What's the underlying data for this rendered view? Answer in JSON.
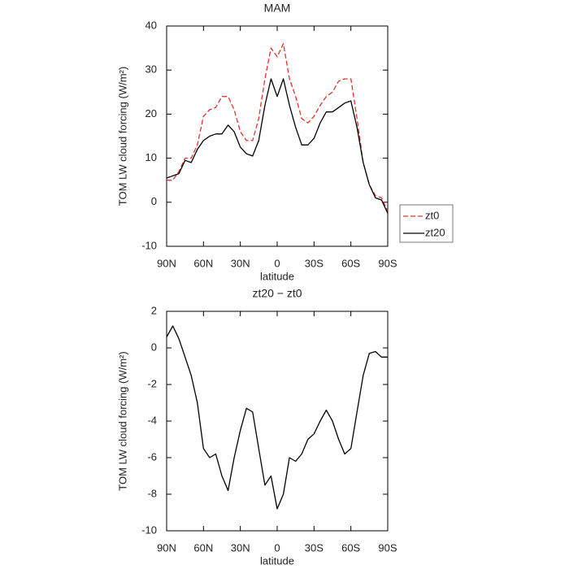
{
  "chart_data": [
    {
      "type": "line",
      "title": "MAM",
      "x_label": "latitude",
      "y_label": "TOM LW cloud forcing (W/m²)",
      "x": [
        90,
        85,
        80,
        75,
        70,
        65,
        60,
        55,
        50,
        45,
        40,
        35,
        30,
        25,
        20,
        15,
        10,
        5,
        0,
        -5,
        -10,
        -15,
        -20,
        -25,
        -30,
        -35,
        -40,
        -45,
        -50,
        -55,
        -60,
        -65,
        -70,
        -75,
        -80,
        -85,
        -90
      ],
      "series": [
        {
          "name": "zt0",
          "color": "#e8302a",
          "line_style": "dashed",
          "values": [
            5,
            5,
            7,
            10,
            10,
            13,
            19.5,
            21,
            21.5,
            24,
            24,
            21,
            16,
            14,
            14,
            19,
            28,
            35,
            33,
            36,
            28,
            24,
            19,
            18,
            19.5,
            22,
            24,
            25,
            27.5,
            28,
            28,
            19,
            9,
            4,
            1.5,
            1,
            -2
          ]
        },
        {
          "name": "zt20",
          "color": "#000000",
          "line_style": "solid",
          "values": [
            5.5,
            6,
            6.5,
            9.5,
            9,
            12,
            14,
            15,
            15.5,
            15.5,
            17.5,
            16,
            12.5,
            11,
            10.5,
            14,
            22,
            28,
            24,
            28,
            22,
            17,
            13,
            13,
            14.5,
            18,
            20.5,
            20.5,
            21.5,
            22.5,
            23,
            17,
            9,
            4,
            1,
            0.5,
            -2.5
          ]
        }
      ],
      "xlim": [
        90,
        -90
      ],
      "xticks": [
        {
          "value": 90,
          "label": "90N"
        },
        {
          "value": 60,
          "label": "60N"
        },
        {
          "value": 30,
          "label": "30N"
        },
        {
          "value": 0,
          "label": "0"
        },
        {
          "value": -30,
          "label": "30S"
        },
        {
          "value": -60,
          "label": "60S"
        },
        {
          "value": -90,
          "label": "90S"
        }
      ],
      "ylim": [
        -10,
        40
      ],
      "yticks": [
        -10,
        0,
        10,
        20,
        30,
        40
      ],
      "legend": "right"
    },
    {
      "type": "line",
      "title": "zt20 − zt0",
      "x_label": "latitude",
      "y_label": "TOM LW cloud forcing (W/m²)",
      "x": [
        90,
        85,
        80,
        75,
        70,
        65,
        60,
        55,
        50,
        45,
        40,
        35,
        30,
        25,
        20,
        15,
        10,
        5,
        0,
        -5,
        -10,
        -15,
        -20,
        -25,
        -30,
        -35,
        -40,
        -45,
        -50,
        -55,
        -60,
        -65,
        -70,
        -75,
        -80,
        -85,
        -90
      ],
      "series": [
        {
          "color": "#000000",
          "line_style": "solid",
          "values": [
            0.6,
            1.2,
            0.5,
            -0.5,
            -1.5,
            -3,
            -5.5,
            -6,
            -5.8,
            -7,
            -7.8,
            -6,
            -4.5,
            -3.3,
            -3.5,
            -5.5,
            -7.5,
            -7,
            -8.8,
            -8,
            -6,
            -6.2,
            -5.8,
            -5,
            -4.7,
            -4,
            -3.4,
            -4,
            -5,
            -5.8,
            -5.5,
            -3.5,
            -1.5,
            -0.3,
            -0.2,
            -0.5,
            -0.5
          ]
        }
      ],
      "xlim": [
        90,
        -90
      ],
      "xticks": [
        {
          "value": 90,
          "label": "90N"
        },
        {
          "value": 60,
          "label": "60N"
        },
        {
          "value": 30,
          "label": "30N"
        },
        {
          "value": 0,
          "label": "0"
        },
        {
          "value": -30,
          "label": "30S"
        },
        {
          "value": -60,
          "label": "60S"
        },
        {
          "value": -90,
          "label": "90S"
        }
      ],
      "ylim": [
        -10,
        2
      ],
      "yticks": [
        -10,
        -8,
        -6,
        -4,
        -2,
        0,
        2
      ]
    }
  ]
}
